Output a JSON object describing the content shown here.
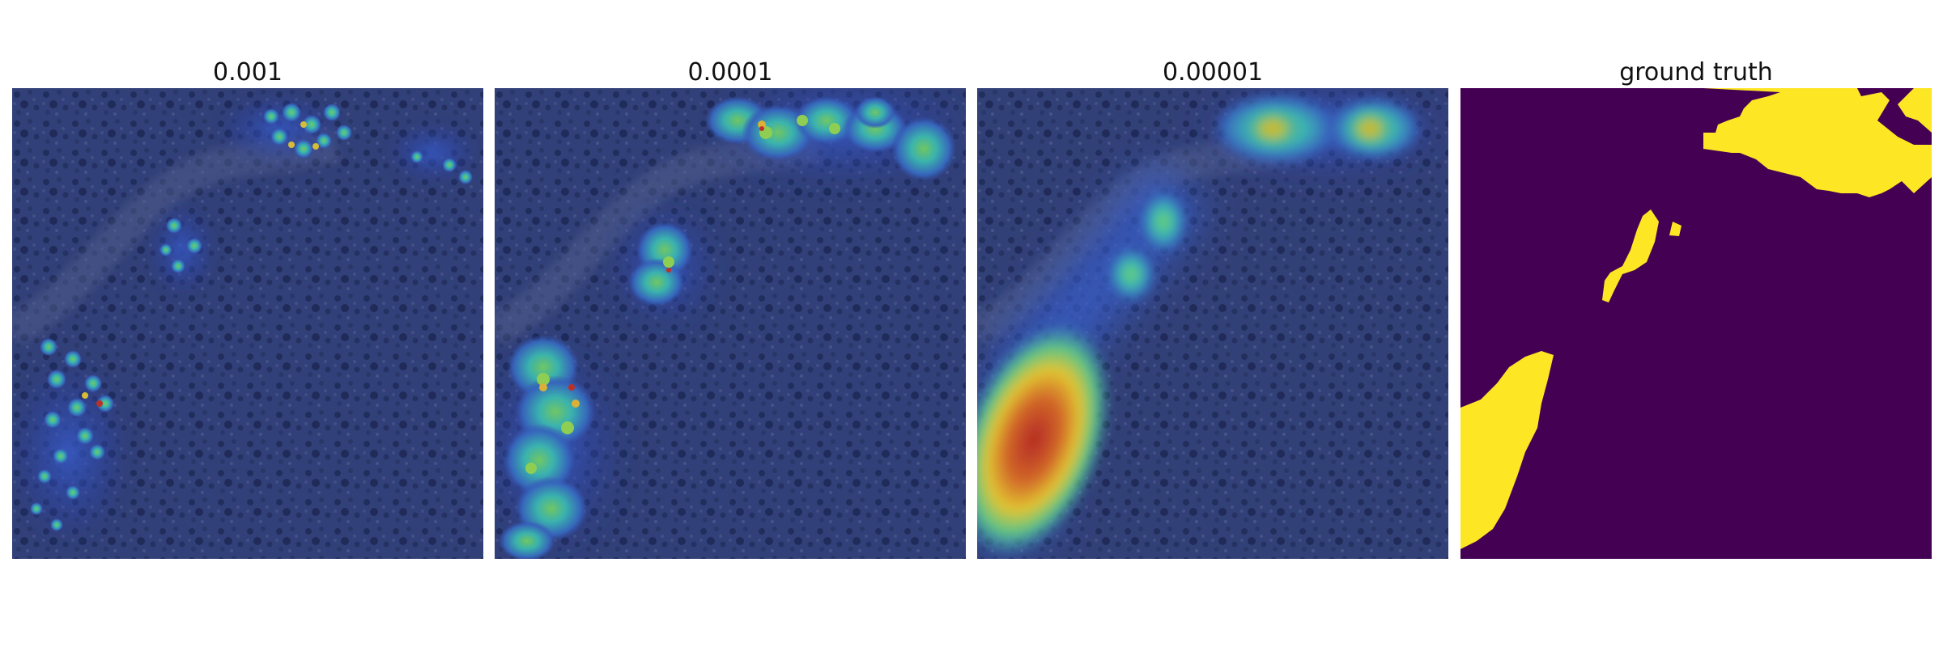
{
  "figure": {
    "panels": [
      {
        "title": "0.001",
        "kind": "heatmap-overlay"
      },
      {
        "title": "0.0001",
        "kind": "heatmap-overlay"
      },
      {
        "title": "0.00001",
        "kind": "heatmap-overlay"
      },
      {
        "title": "ground truth",
        "kind": "segmentation-mask"
      }
    ],
    "colors": {
      "background_blue": "#34427a",
      "heat_cyan": "#3fc8c0",
      "heat_green": "#8fe04a",
      "heat_yellow": "#f2d22e",
      "heat_red": "#c0281e",
      "mask_background": "#440154",
      "mask_foreground": "#fde725"
    }
  }
}
